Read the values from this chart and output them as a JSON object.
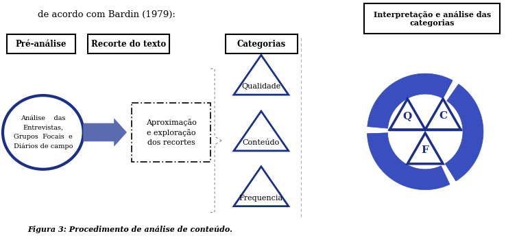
{
  "title_text": "de acordo com Bardin (1979):",
  "caption": "Figura 3: Procedimento de análise de conteúdo.",
  "box1_label": "Pré-análise",
  "box2_label": "Recorte do texto",
  "box3_label": "Categorias",
  "box4_label": "Interpretação e análise das\ncategorias",
  "ellipse_text": "Análise    das\nEntrevistas,\nGrupos  Focais  e\nDiários de campo",
  "dashed_box_text": "Aproximação\ne exploração\ndos recortes",
  "triangle_labels": [
    "Qualidade",
    "Conteúdo",
    "Frequencia"
  ],
  "dark_blue": "#1A2E8C",
  "medium_blue": "#3A4FBF",
  "arrow_fill": "#5A6BB0",
  "bg_color": "#FFFFFF",
  "fig_w": 7.38,
  "fig_h": 3.47,
  "dpi": 100
}
